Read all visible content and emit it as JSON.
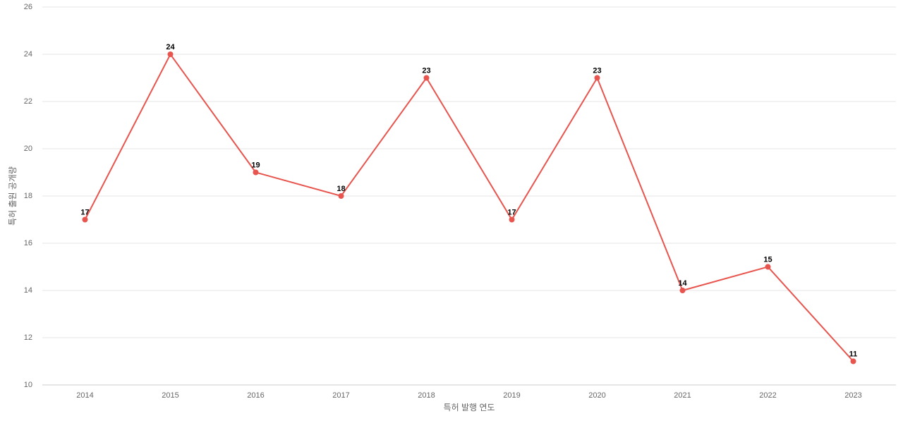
{
  "chart_data": {
    "type": "line",
    "x_label": "특허 발행 연도",
    "y_label": "특허 출원 공개량",
    "categories": [
      "2014",
      "2015",
      "2016",
      "2017",
      "2018",
      "2019",
      "2020",
      "2021",
      "2022",
      "2023"
    ],
    "values": [
      17,
      24,
      19,
      18,
      23,
      17,
      23,
      14,
      15,
      11
    ],
    "color": "#e8554e",
    "ylim": [
      10,
      26
    ],
    "yticks": [
      10,
      12,
      14,
      16,
      18,
      20,
      22,
      24,
      26
    ],
    "grid": true
  }
}
